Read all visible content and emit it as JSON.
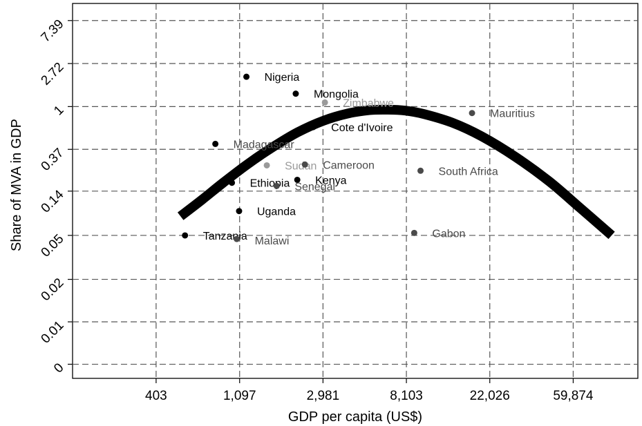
{
  "chart_data": {
    "type": "scatter",
    "title": "",
    "xlabel": "GDP per capita (US$)",
    "ylabel": "Share of MVA in GDP",
    "x_scale": "log",
    "y_scale": "log",
    "xlim": [
      148,
      130000
    ],
    "ylim": [
      0.0018,
      11
    ],
    "x_ticks": [
      {
        "value": 403,
        "label": "403"
      },
      {
        "value": 1097,
        "label": "1,097"
      },
      {
        "value": 2981,
        "label": "2,981"
      },
      {
        "value": 8103,
        "label": "8,103"
      },
      {
        "value": 22026,
        "label": "22,026"
      },
      {
        "value": 59874,
        "label": "59,874"
      }
    ],
    "y_ticks": [
      {
        "value": 0.0025,
        "label": "0"
      },
      {
        "value": 0.0067,
        "label": "0.01"
      },
      {
        "value": 0.018,
        "label": "0.02"
      },
      {
        "value": 0.05,
        "label": "0.05"
      },
      {
        "value": 0.14,
        "label": "0.14"
      },
      {
        "value": 0.37,
        "label": "0.37"
      },
      {
        "value": 1,
        "label": "1"
      },
      {
        "value": 2.72,
        "label": "2.72"
      },
      {
        "value": 7.39,
        "label": "7.39"
      }
    ],
    "grid": true,
    "legend": "none",
    "fit_curve": {
      "type": "quadratic-log",
      "x": [
        540,
        700,
        900,
        1200,
        1600,
        2200,
        3000,
        4000,
        5200,
        6500,
        8000,
        10000,
        14000,
        20000,
        30000,
        45000,
        65000,
        95000
      ],
      "y": [
        0.078,
        0.115,
        0.17,
        0.26,
        0.38,
        0.55,
        0.72,
        0.85,
        0.92,
        0.93,
        0.91,
        0.84,
        0.69,
        0.5,
        0.31,
        0.175,
        0.095,
        0.05
      ],
      "color": "#000000"
    },
    "points": [
      {
        "label": "Nigeria",
        "x": 1190,
        "y": 2.0,
        "color": "#000000",
        "label_color": "#000000",
        "label_offset": [
          26,
          6
        ]
      },
      {
        "label": "Mongolia",
        "x": 2150,
        "y": 1.35,
        "color": "#000000",
        "label_color": "#000000",
        "label_offset": [
          26,
          6
        ]
      },
      {
        "label": "Zimbabwe",
        "x": 3050,
        "y": 1.1,
        "color": "#9a9a9a",
        "label_color": "#9a9a9a",
        "label_offset": [
          26,
          6
        ]
      },
      {
        "label": "Mauritius",
        "x": 17800,
        "y": 0.86,
        "color": "#4a4a4a",
        "label_color": "#4a4a4a",
        "label_offset": [
          26,
          6
        ]
      },
      {
        "label": "Cote d'Ivoire",
        "x": 2650,
        "y": 0.62,
        "color": "#000000",
        "label_color": "#000000",
        "label_offset": [
          26,
          6
        ]
      },
      {
        "label": "Madagascar",
        "x": 820,
        "y": 0.42,
        "color": "#000000",
        "label_color": "#4a4a4a",
        "label_offset": [
          26,
          6
        ]
      },
      {
        "label": "Sudan",
        "x": 1520,
        "y": 0.255,
        "color": "#9a9a9a",
        "label_color": "#9a9a9a",
        "label_offset": [
          26,
          6
        ]
      },
      {
        "label": "Cameroon",
        "x": 2400,
        "y": 0.26,
        "color": "#4a4a4a",
        "label_color": "#4a4a4a",
        "label_offset": [
          26,
          6
        ]
      },
      {
        "label": "South Africa",
        "x": 9600,
        "y": 0.225,
        "color": "#4a4a4a",
        "label_color": "#4a4a4a",
        "label_offset": [
          26,
          6
        ]
      },
      {
        "label": "Ethiopia",
        "x": 1000,
        "y": 0.17,
        "color": "#000000",
        "label_color": "#000000",
        "label_offset": [
          26,
          6
        ]
      },
      {
        "label": "Kenya",
        "x": 2190,
        "y": 0.182,
        "color": "#000000",
        "label_color": "#000000",
        "label_offset": [
          26,
          6
        ]
      },
      {
        "label": "Senegal",
        "x": 1710,
        "y": 0.158,
        "color": "#4a4a4a",
        "label_color": "#4a4a4a",
        "label_offset": [
          26,
          6
        ]
      },
      {
        "label": "Uganda",
        "x": 1090,
        "y": 0.088,
        "color": "#000000",
        "label_color": "#000000",
        "label_offset": [
          26,
          6
        ]
      },
      {
        "label": "Tanzania",
        "x": 570,
        "y": 0.05,
        "color": "#000000",
        "label_color": "#000000",
        "label_offset": [
          26,
          6
        ]
      },
      {
        "label": "Malawi",
        "x": 1060,
        "y": 0.046,
        "color": "#4a4a4a",
        "label_color": "#4a4a4a",
        "label_offset": [
          26,
          8
        ]
      },
      {
        "label": "Gabon",
        "x": 8900,
        "y": 0.053,
        "color": "#4a4a4a",
        "label_color": "#4a4a4a",
        "label_offset": [
          26,
          6
        ]
      }
    ]
  }
}
